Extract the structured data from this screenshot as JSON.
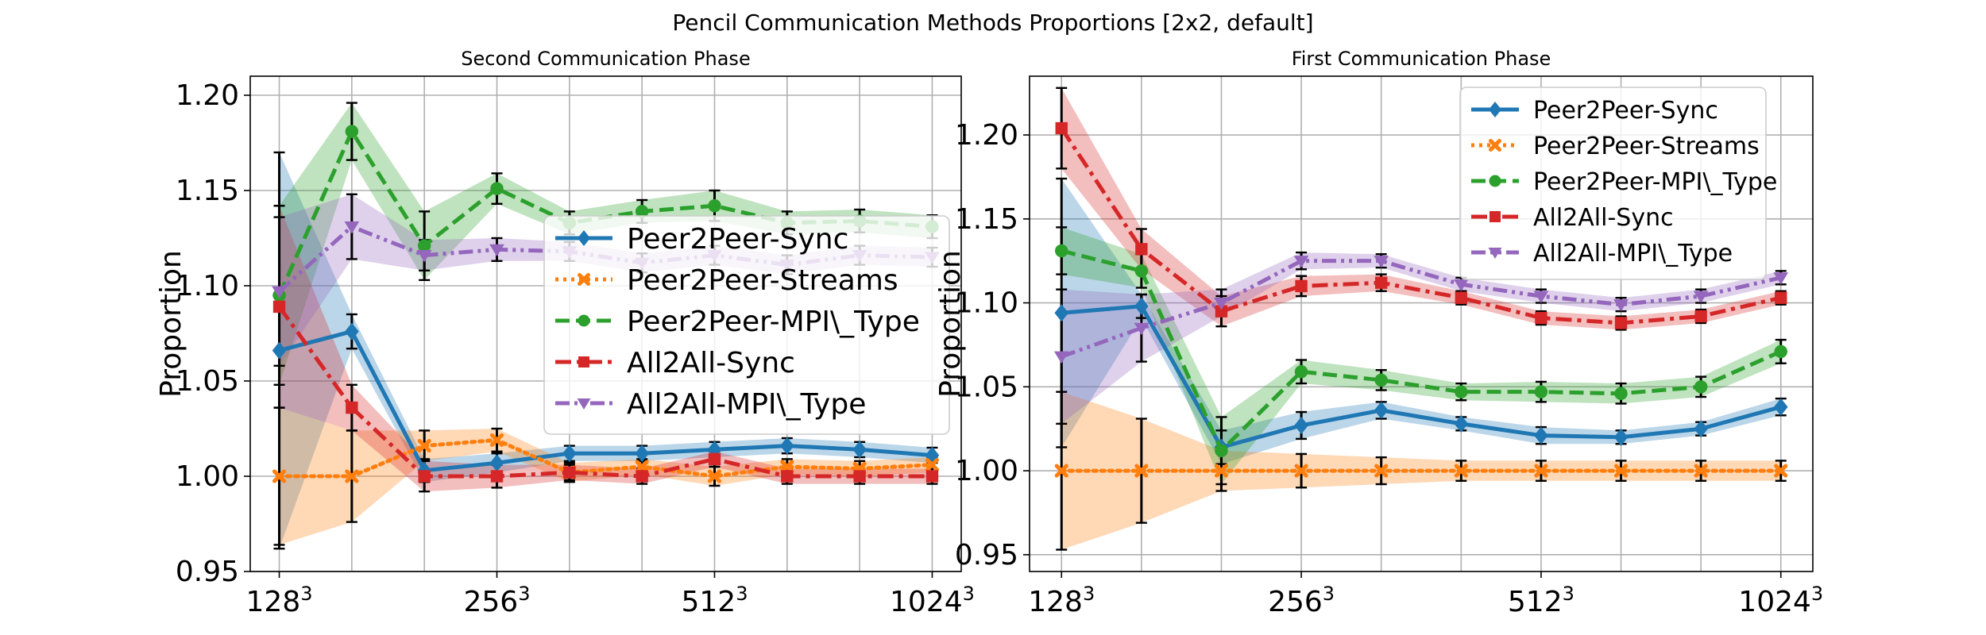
{
  "figure_title": "Pencil Communication Methods Proportions [2x2, default]",
  "chart_data": [
    {
      "type": "line",
      "title": "Second Communication Phase",
      "ylabel": "Proportion",
      "xlabel": "",
      "ylim": [
        0.95,
        1.21
      ],
      "yticks": [
        "0.95",
        "1.00",
        "1.05",
        "1.10",
        "1.15",
        "1.20"
      ],
      "ytick_values": [
        0.95,
        1.0,
        1.05,
        1.1,
        1.15,
        1.2
      ],
      "xtick_labels": [
        {
          "base": "128",
          "exp": "3",
          "x": 0
        },
        {
          "base": "256",
          "exp": "3",
          "x": 3
        },
        {
          "base": "512",
          "exp": "3",
          "x": 6
        },
        {
          "base": "1024",
          "exp": "3",
          "x": 9
        }
      ],
      "x": [
        0,
        1,
        2,
        3,
        4,
        5,
        6,
        7,
        8,
        9
      ],
      "grid": true,
      "legend_position": "center-right",
      "series": [
        {
          "name": "Peer2Peer-Sync",
          "color": "#1f77b4",
          "style": "solid",
          "marker": "diamond",
          "values": [
            1.066,
            1.076,
            1.003,
            1.007,
            1.012,
            1.012,
            1.014,
            1.016,
            1.014,
            1.011
          ],
          "err": [
            0.104,
            0.009,
            0.006,
            0.005,
            0.004,
            0.004,
            0.004,
            0.004,
            0.004,
            0.004
          ]
        },
        {
          "name": "Peer2Peer-Streams",
          "color": "#ff7f0e",
          "style": "dotted",
          "marker": "x",
          "values": [
            1.0,
            1.0,
            1.016,
            1.019,
            1.002,
            1.005,
            1.0,
            1.005,
            1.004,
            1.006
          ],
          "err": [
            0.036,
            0.024,
            0.008,
            0.006,
            0.005,
            0.004,
            0.005,
            0.004,
            0.004,
            0.004
          ]
        },
        {
          "name": "Peer2Peer-MPI\\_Type",
          "color": "#2ca02c",
          "style": "dashed",
          "marker": "circle",
          "values": [
            1.095,
            1.181,
            1.121,
            1.151,
            1.133,
            1.139,
            1.142,
            1.133,
            1.134,
            1.131
          ],
          "err": [
            0.047,
            0.015,
            0.018,
            0.008,
            0.006,
            0.006,
            0.008,
            0.006,
            0.006,
            0.006
          ]
        },
        {
          "name": "All2All-Sync",
          "color": "#d62728",
          "style": "dashdot",
          "marker": "square",
          "values": [
            1.089,
            1.036,
            1.0,
            1.0,
            1.002,
            1.0,
            1.009,
            1.0,
            1.0,
            1.0
          ],
          "err": [
            0.053,
            0.012,
            0.008,
            0.006,
            0.004,
            0.004,
            0.004,
            0.004,
            0.004,
            0.004
          ]
        },
        {
          "name": "All2All-MPI\\_Type",
          "color": "#9467bd",
          "style": "dashdotdot",
          "marker": "triangle-down",
          "values": [
            1.097,
            1.131,
            1.116,
            1.119,
            1.118,
            1.112,
            1.116,
            1.111,
            1.116,
            1.115
          ],
          "err": [
            0.039,
            0.017,
            0.008,
            0.006,
            0.005,
            0.005,
            0.005,
            0.005,
            0.005,
            0.005
          ]
        }
      ]
    },
    {
      "type": "line",
      "title": "First Communication Phase",
      "ylabel": "Proportion",
      "xlabel": "",
      "ylim": [
        0.94,
        1.235
      ],
      "yticks": [
        "0.95",
        "1.00",
        "1.05",
        "1.10",
        "1.15",
        "1.20"
      ],
      "ytick_values": [
        0.95,
        1.0,
        1.05,
        1.1,
        1.15,
        1.2
      ],
      "xtick_labels": [
        {
          "base": "128",
          "exp": "3",
          "x": 0
        },
        {
          "base": "256",
          "exp": "3",
          "x": 3
        },
        {
          "base": "512",
          "exp": "3",
          "x": 6
        },
        {
          "base": "1024",
          "exp": "3",
          "x": 9
        }
      ],
      "x": [
        0,
        1,
        2,
        3,
        4,
        5,
        6,
        7,
        8,
        9
      ],
      "grid": true,
      "legend_position": "top-right",
      "series": [
        {
          "name": "Peer2Peer-Sync",
          "color": "#1f77b4",
          "style": "solid",
          "marker": "diamond",
          "values": [
            1.094,
            1.098,
            1.014,
            1.027,
            1.036,
            1.028,
            1.021,
            1.02,
            1.025,
            1.038
          ],
          "err": [
            0.08,
            0.007,
            0.01,
            0.008,
            0.005,
            0.004,
            0.005,
            0.004,
            0.004,
            0.005
          ]
        },
        {
          "name": "Peer2Peer-Streams",
          "color": "#ff7f0e",
          "style": "dotted",
          "marker": "x",
          "values": [
            1.0,
            1.0,
            1.0,
            1.0,
            1.0,
            1.0,
            1.0,
            1.0,
            1.0,
            1.0
          ],
          "err": [
            0.047,
            0.031,
            0.012,
            0.01,
            0.008,
            0.006,
            0.006,
            0.006,
            0.006,
            0.006
          ]
        },
        {
          "name": "Peer2Peer-MPI\\_Type",
          "color": "#2ca02c",
          "style": "dashed",
          "marker": "circle",
          "values": [
            1.131,
            1.119,
            1.012,
            1.059,
            1.054,
            1.047,
            1.047,
            1.046,
            1.05,
            1.071
          ],
          "err": [
            0.014,
            0.01,
            0.02,
            0.007,
            0.006,
            0.005,
            0.006,
            0.006,
            0.006,
            0.007
          ]
        },
        {
          "name": "All2All-Sync",
          "color": "#d62728",
          "style": "dashdot",
          "marker": "square",
          "values": [
            1.204,
            1.132,
            1.095,
            1.11,
            1.112,
            1.103,
            1.091,
            1.088,
            1.092,
            1.103
          ],
          "err": [
            0.024,
            0.012,
            0.009,
            0.006,
            0.005,
            0.004,
            0.004,
            0.004,
            0.004,
            0.004
          ]
        },
        {
          "name": "All2All-MPI\\_Type",
          "color": "#9467bd",
          "style": "dashdotdot",
          "marker": "triangle-down",
          "values": [
            1.068,
            1.085,
            1.1,
            1.125,
            1.125,
            1.111,
            1.104,
            1.099,
            1.104,
            1.115
          ],
          "err": [
            0.04,
            0.02,
            0.008,
            0.005,
            0.004,
            0.004,
            0.004,
            0.004,
            0.004,
            0.004
          ]
        }
      ]
    }
  ]
}
